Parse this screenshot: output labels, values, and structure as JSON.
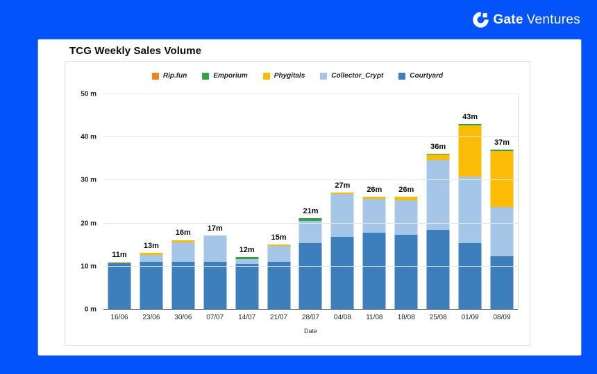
{
  "brand": {
    "name_bold": "Gate",
    "name_light": "Ventures",
    "background_color": "#0353fb",
    "logo_color": "#ffffff"
  },
  "chart_data": {
    "type": "bar",
    "stacked": true,
    "title": "TCG Weekly Sales Volume",
    "xlabel": "Date",
    "ylabel": "",
    "ylim": [
      0,
      50
    ],
    "grid": true,
    "legend_position": "top",
    "ytick_labels": [
      "0 m",
      "10 m",
      "20 m",
      "30 m",
      "40 m",
      "50 m"
    ],
    "categories": [
      "16/06",
      "23/06",
      "30/06",
      "07/07",
      "14/07",
      "21/07",
      "28/07",
      "04/08",
      "11/08",
      "18/08",
      "25/08",
      "01/09",
      "08/09"
    ],
    "total_labels": [
      "11m",
      "13m",
      "16m",
      "17m",
      "12m",
      "15m",
      "21m",
      "27m",
      "26m",
      "26m",
      "36m",
      "43m",
      "37m"
    ],
    "totals": [
      11,
      13,
      16,
      17,
      12,
      15,
      21,
      27,
      26,
      26,
      36,
      43,
      37
    ],
    "series": [
      {
        "name": "Courtyard",
        "color": "#3d7ebd",
        "values": [
          10.6,
          11.0,
          11.0,
          11.0,
          10.5,
          11.0,
          15.2,
          16.7,
          17.7,
          17.2,
          18.3,
          15.3,
          12.2
        ]
      },
      {
        "name": "Collector_Crypt",
        "color": "#a6c6e7",
        "values": [
          0.1,
          1.6,
          4.4,
          6.0,
          1.1,
          3.6,
          5.3,
          10.0,
          7.9,
          8.1,
          16.3,
          15.4,
          11.4
        ]
      },
      {
        "name": "Phygitals",
        "color": "#fbbc05",
        "values": [
          0.3,
          0.4,
          0.6,
          0.0,
          0.0,
          0.4,
          0.0,
          0.3,
          0.4,
          0.7,
          1.2,
          11.9,
          13.0
        ]
      },
      {
        "name": "Emporium",
        "color": "#34a047",
        "values": [
          0,
          0,
          0,
          0,
          0.4,
          0,
          0.5,
          0,
          0,
          0,
          0.2,
          0.4,
          0.4
        ]
      },
      {
        "name": "Rip.fun",
        "color": "#f5821f",
        "values": [
          0,
          0,
          0,
          0,
          0,
          0,
          0,
          0,
          0,
          0,
          0,
          0,
          0
        ]
      }
    ],
    "legend_order": [
      "Rip.fun",
      "Emporium",
      "Phygitals",
      "Collector_Crypt",
      "Courtyard"
    ]
  }
}
